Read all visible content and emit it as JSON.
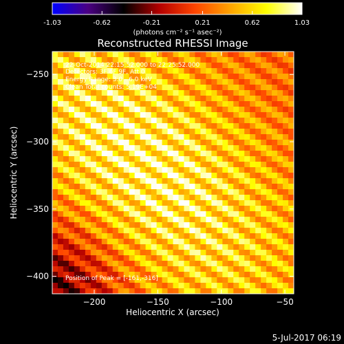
{
  "chart_data": {
    "type": "heatmap",
    "title": "Reconstructed RHESSI Image",
    "xlabel": "Heliocentric X (arcsec)",
    "ylabel": "Heliocentric Y (arcsec)",
    "xlim": [
      -233,
      -43
    ],
    "ylim": [
      -413,
      -233
    ],
    "x_ticks": [
      -200,
      -150,
      -100,
      -50
    ],
    "y_ticks": [
      -250,
      -300,
      -350,
      -400
    ],
    "colorbar": {
      "min": -1.03,
      "max": 1.03,
      "tick_values": [
        -1.03,
        -0.62,
        -0.21,
        0.21,
        0.62,
        1.03
      ],
      "tick_labels": [
        "-1.03",
        "-0.62",
        "-0.21",
        "0.21",
        "0.62",
        "1.03"
      ],
      "units_label": "(photons cm⁻² s⁻¹ asec⁻²)"
    },
    "annotations": [
      "22-Oct-2014 22:15:52.000 to 22:25:52.000",
      "Detectors: 3F 6F 9F, Att 0",
      "Energy Range: 3.0 - 6.0 keV",
      "Clean     Total counts: 5.19E+04",
      "Position of Peak = [-161,-316]"
    ],
    "peak": {
      "x": -161,
      "y": -316
    },
    "colors": {
      "cmap_stops": [
        "#0000ff",
        "#4b0082",
        "#000000",
        "#b30000",
        "#ff4500",
        "#ffa500",
        "#ffff00",
        "#ffffff"
      ]
    }
  },
  "footer": {
    "date": "5-Jul-2017 06:19"
  }
}
